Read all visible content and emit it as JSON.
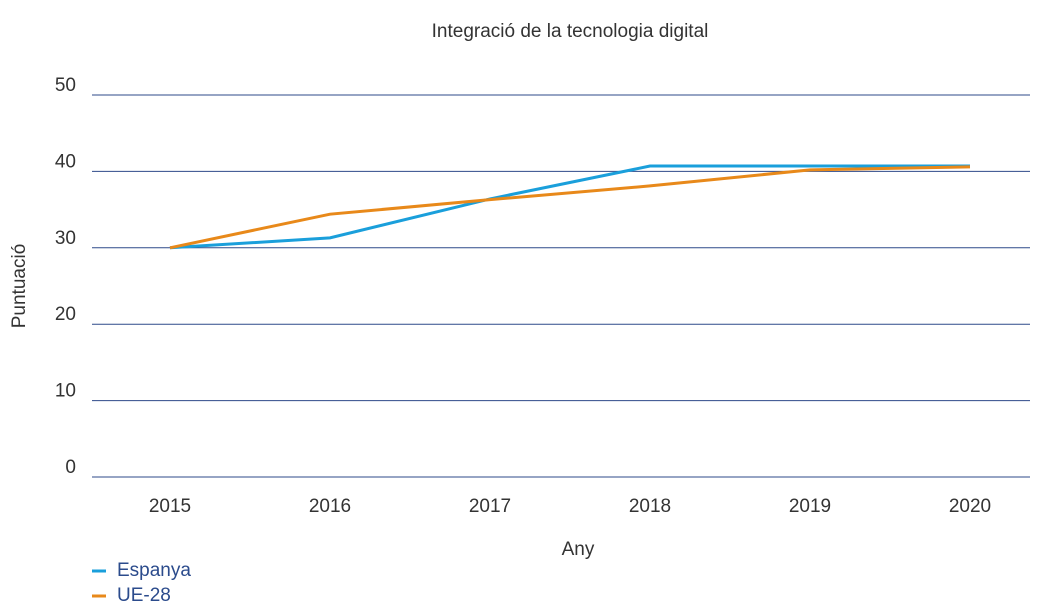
{
  "chart_data": {
    "type": "line",
    "title": "Integració de la tecnologia digital",
    "x_label": "Any",
    "y_label": "Puntuació",
    "categories": [
      "2015",
      "2016",
      "2017",
      "2018",
      "2019",
      "2020"
    ],
    "series": [
      {
        "name": "Espanya",
        "color": "#1a9fdb",
        "values": [
          30.0,
          31.3,
          36.4,
          40.7,
          40.7,
          40.7
        ]
      },
      {
        "name": "UE-28",
        "color": "#e8891a",
        "values": [
          30.0,
          34.4,
          36.3,
          38.1,
          40.2,
          40.6
        ]
      }
    ],
    "ylim": [
      0,
      50
    ],
    "yticks": [
      0,
      10,
      20,
      30,
      40,
      50
    ],
    "grid": true,
    "grid_color": "#2e4a8a",
    "legend": "bottom-left"
  }
}
